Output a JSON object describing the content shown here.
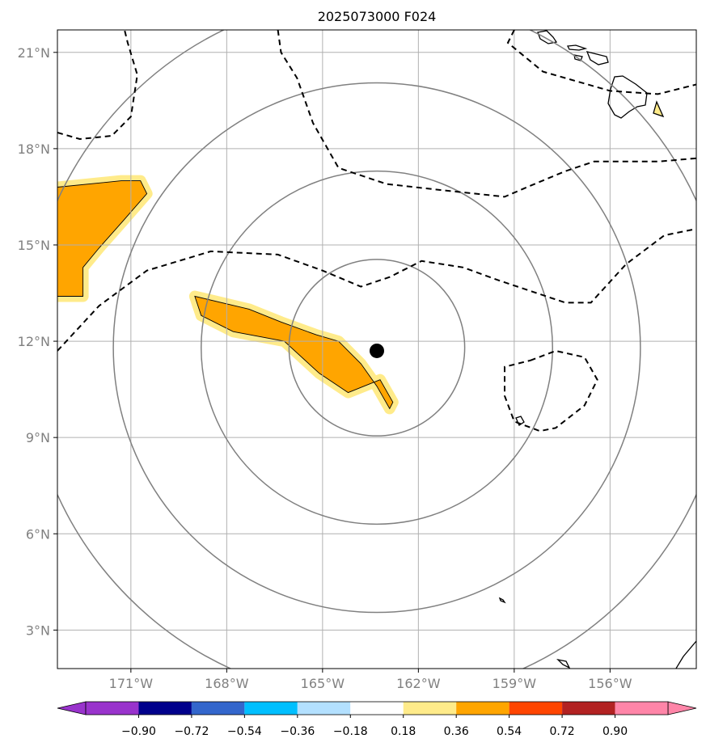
{
  "chart_data": {
    "type": "map",
    "title": "2025073000 F024",
    "lon_range": [
      -173.3,
      -153.3
    ],
    "lat_range": [
      1.8,
      21.7
    ],
    "lon_ticks": [
      {
        "value": -171,
        "label": "171°W"
      },
      {
        "value": -168,
        "label": "168°W"
      },
      {
        "value": -165,
        "label": "165°W"
      },
      {
        "value": -162,
        "label": "162°W"
      },
      {
        "value": -159,
        "label": "159°W"
      },
      {
        "value": -156,
        "label": "156°W"
      }
    ],
    "lat_ticks": [
      {
        "value": 21,
        "label": "21°N"
      },
      {
        "value": 18,
        "label": "18°N"
      },
      {
        "value": 15,
        "label": "15°N"
      },
      {
        "value": 12,
        "label": "12°N"
      },
      {
        "value": 9,
        "label": "9°N"
      },
      {
        "value": 6,
        "label": "6°N"
      },
      {
        "value": 3,
        "label": "3°N"
      }
    ],
    "grid": true,
    "storm_center": {
      "lon": -163.3,
      "lat": 11.7
    },
    "range_rings": [
      {
        "center_lon": -163.3,
        "center_lat": 11.8,
        "radius_deg": 2.75
      },
      {
        "center_lon": -163.3,
        "center_lat": 11.8,
        "radius_deg": 5.5
      },
      {
        "center_lon": -163.3,
        "center_lat": 11.8,
        "radius_deg": 8.25
      },
      {
        "center_lon": -163.3,
        "center_lat": 11.8,
        "radius_deg": 11.0
      }
    ],
    "colorbar": {
      "ticks": [
        "−0.90",
        "−0.72",
        "−0.54",
        "−0.36",
        "−0.18",
        "0.18",
        "0.36",
        "0.54",
        "0.72",
        "0.90"
      ],
      "colors": [
        "#9933cc",
        "#00008b",
        "#3366cc",
        "#00bfff",
        "#b3e0ff",
        "#ffffff",
        "#ffeb8a",
        "#ffa500",
        "#ff4500",
        "#b22222",
        "#ff85a8"
      ],
      "extend": "both",
      "placement": "bottom"
    },
    "shaded_regions": [
      {
        "level": "0.36-0.54",
        "color": "#ffa500",
        "outline": [
          [
            -173.3,
            16.8
          ],
          [
            -171.3,
            17.0
          ],
          [
            -170.7,
            17.0
          ],
          [
            -170.5,
            16.6
          ],
          [
            -171.2,
            15.8
          ],
          [
            -172.0,
            14.9
          ],
          [
            -172.5,
            14.3
          ],
          [
            -172.5,
            13.4
          ],
          [
            -173.3,
            13.4
          ]
        ]
      },
      {
        "level": "0.36-0.54",
        "color": "#ffa500",
        "outline": [
          [
            -169.0,
            13.4
          ],
          [
            -167.3,
            13.0
          ],
          [
            -166.3,
            12.6
          ],
          [
            -165.2,
            12.2
          ],
          [
            -164.5,
            12.0
          ],
          [
            -163.8,
            11.3
          ],
          [
            -163.3,
            10.6
          ],
          [
            -162.9,
            9.9
          ],
          [
            -162.8,
            10.1
          ],
          [
            -163.2,
            10.8
          ],
          [
            -164.2,
            10.4
          ],
          [
            -165.1,
            11.0
          ],
          [
            -166.2,
            12.0
          ],
          [
            -167.8,
            12.3
          ],
          [
            -168.8,
            12.8
          ]
        ]
      }
    ],
    "dashed_contours": [
      [
        [
          -173.3,
          18.5
        ],
        [
          -172.6,
          18.3
        ],
        [
          -171.6,
          18.4
        ],
        [
          -171.0,
          19.0
        ],
        [
          -170.8,
          20.3
        ],
        [
          -171.1,
          21.3
        ],
        [
          -171.2,
          21.7
        ]
      ],
      [
        [
          -173.3,
          11.7
        ],
        [
          -172.0,
          13.1
        ],
        [
          -170.5,
          14.2
        ],
        [
          -168.5,
          14.8
        ],
        [
          -166.4,
          14.7
        ],
        [
          -165.0,
          14.2
        ],
        [
          -163.8,
          13.7
        ],
        [
          -162.9,
          14.0
        ],
        [
          -161.9,
          14.5
        ],
        [
          -160.6,
          14.3
        ],
        [
          -159.5,
          13.9
        ],
        [
          -157.4,
          13.2
        ],
        [
          -156.6,
          13.2
        ],
        [
          -155.5,
          14.4
        ],
        [
          -154.3,
          15.3
        ],
        [
          -153.3,
          15.5
        ]
      ],
      [
        [
          -166.4,
          21.7
        ],
        [
          -166.3,
          21.0
        ],
        [
          -165.8,
          20.2
        ],
        [
          -165.3,
          18.8
        ],
        [
          -164.5,
          17.4
        ],
        [
          -163.0,
          16.9
        ],
        [
          -161.2,
          16.7
        ],
        [
          -159.3,
          16.5
        ],
        [
          -158.6,
          16.8
        ],
        [
          -157.4,
          17.3
        ],
        [
          -156.5,
          17.6
        ],
        [
          -154.5,
          17.6
        ],
        [
          -153.3,
          17.7
        ]
      ],
      [
        [
          -159.0,
          21.7
        ],
        [
          -159.2,
          21.3
        ],
        [
          -158.1,
          20.4
        ],
        [
          -156.0,
          19.8
        ],
        [
          -154.5,
          19.7
        ],
        [
          -153.3,
          20.0
        ]
      ],
      [
        [
          -158.5,
          11.4
        ],
        [
          -157.7,
          11.7
        ],
        [
          -156.8,
          11.5
        ],
        [
          -156.4,
          10.8
        ],
        [
          -156.8,
          10.0
        ],
        [
          -157.7,
          9.3
        ],
        [
          -158.2,
          9.2
        ],
        [
          -159.0,
          9.5
        ],
        [
          -159.3,
          10.3
        ],
        [
          -159.3,
          11.2
        ],
        [
          -158.5,
          11.4
        ]
      ]
    ]
  }
}
